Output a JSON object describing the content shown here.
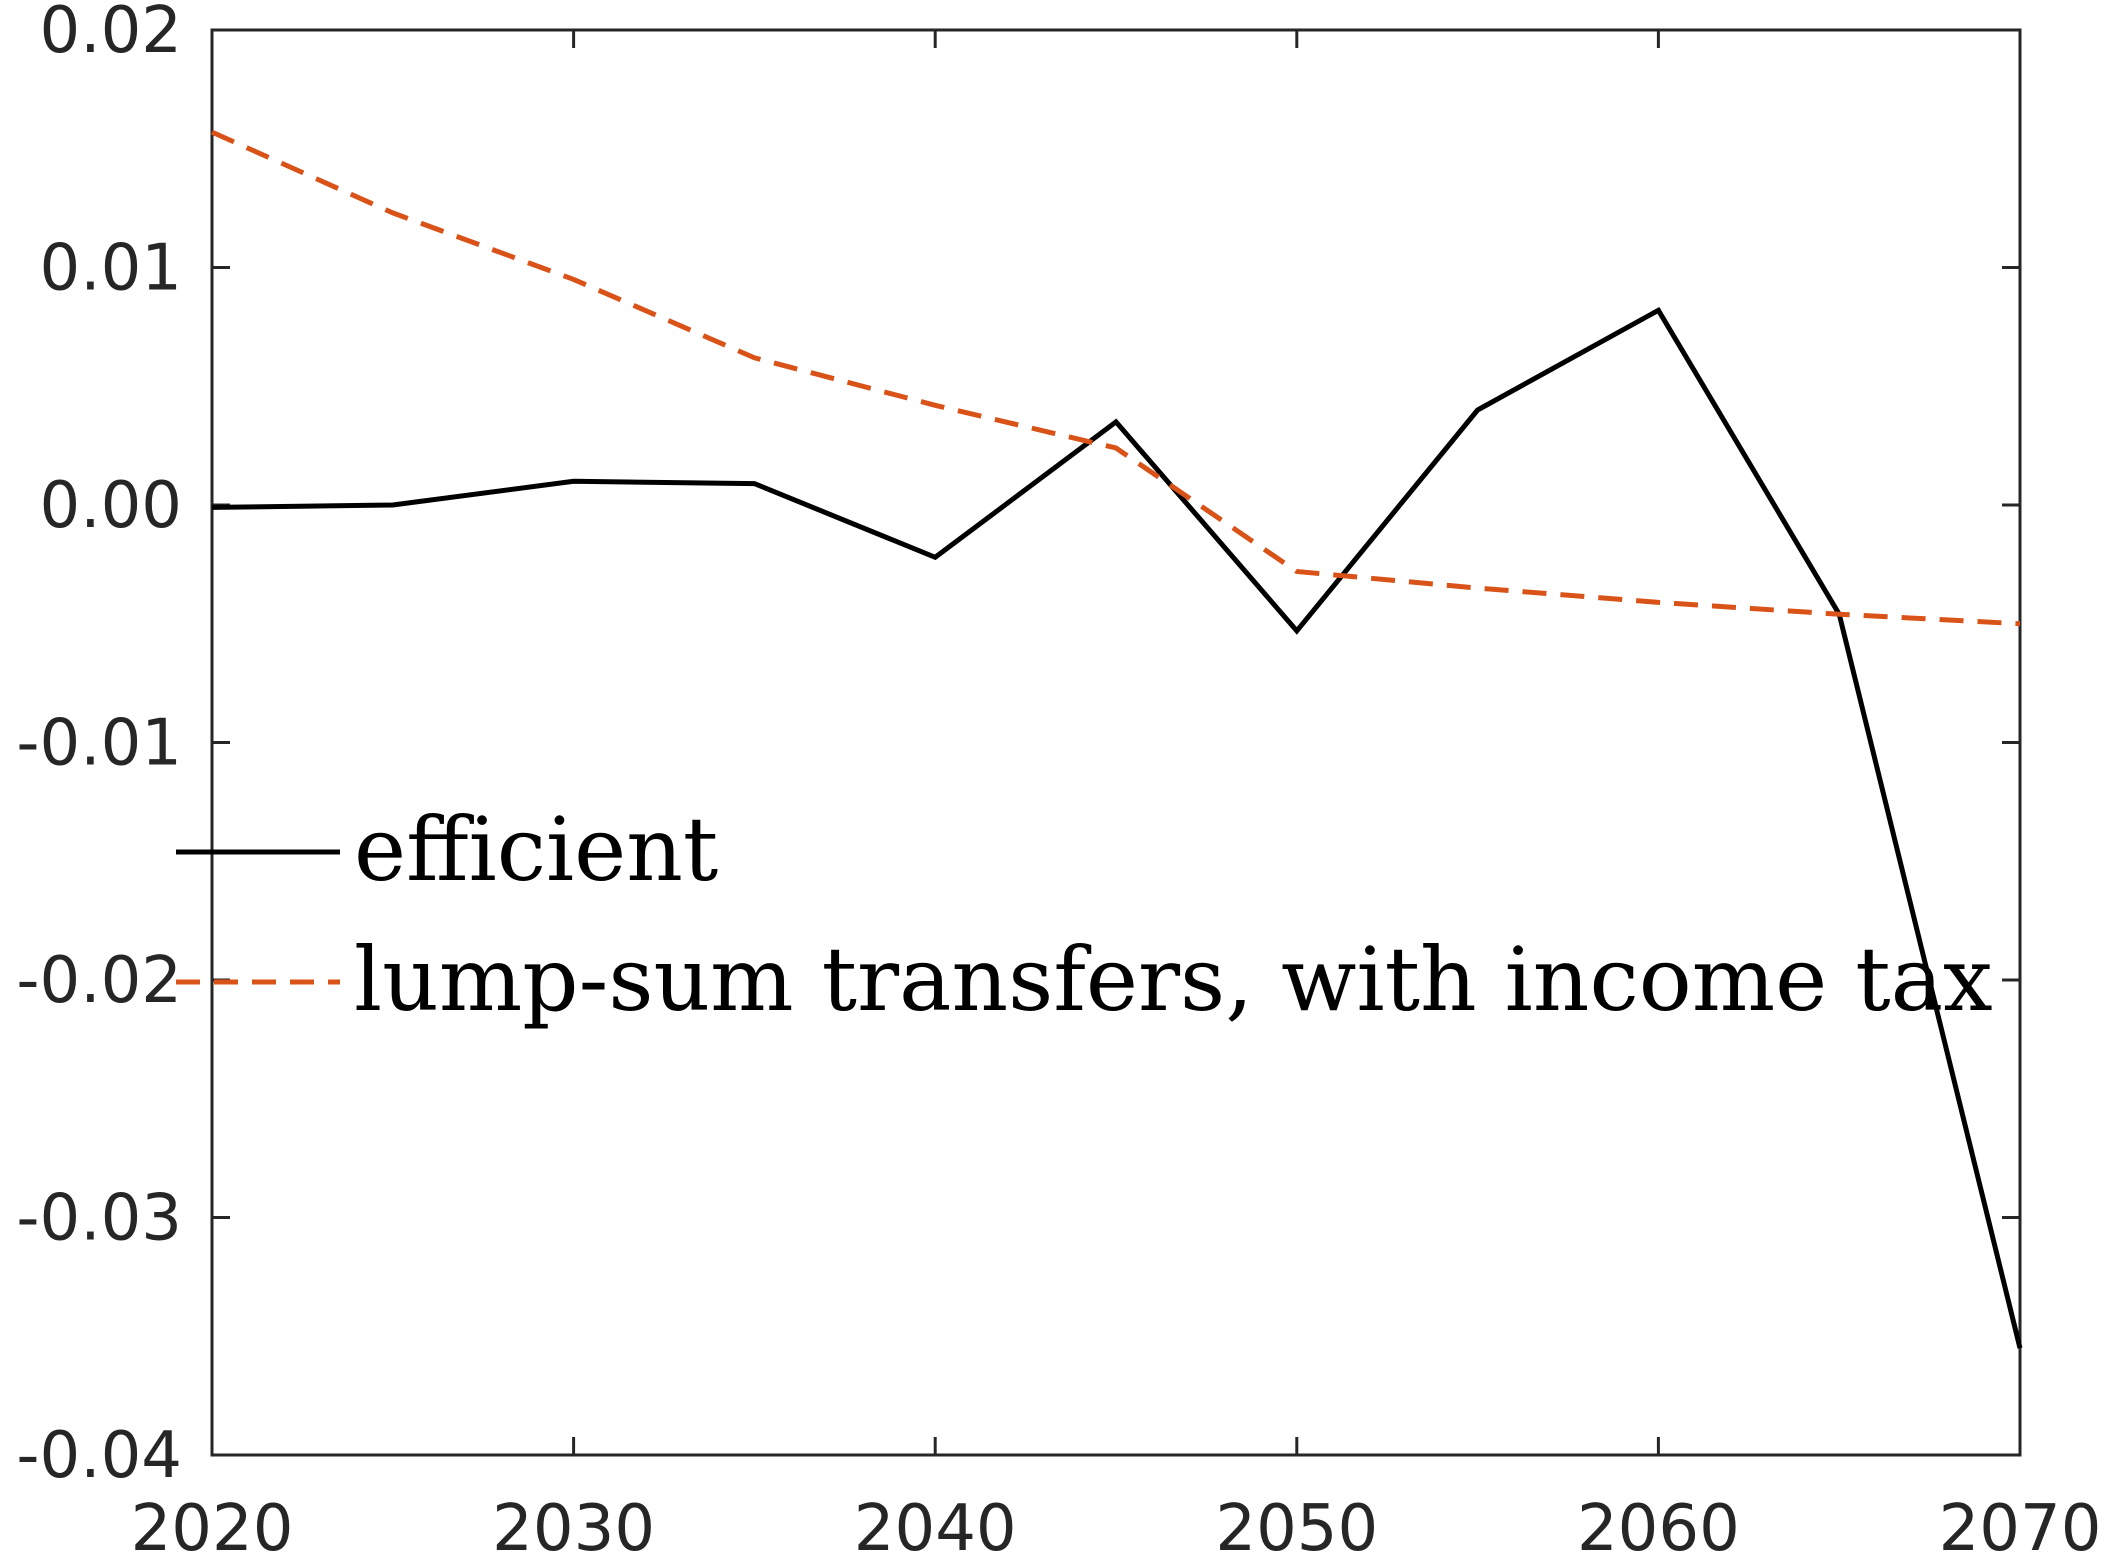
{
  "chart_data": {
    "type": "line",
    "x": [
      2020,
      2025,
      2030,
      2035,
      2040,
      2045,
      2050,
      2055,
      2060,
      2065,
      2070
    ],
    "series": [
      {
        "name": "efficient",
        "color": "#000000",
        "style": "solid",
        "values": [
          -0.0001,
          0.0,
          0.001,
          0.0009,
          -0.0022,
          0.0035,
          -0.0053,
          0.004,
          0.0082,
          -0.0046,
          -0.0355
        ]
      },
      {
        "name": "lump-sum transfers, with income tax",
        "color": "#D95319",
        "style": "dashed",
        "values": [
          0.0157,
          0.0123,
          0.0095,
          0.0062,
          0.0042,
          0.0024,
          -0.0028,
          -0.0035,
          -0.0041,
          -0.0046,
          -0.005
        ]
      }
    ],
    "xlim": [
      2020,
      2070
    ],
    "ylim": [
      -0.04,
      0.02
    ],
    "xticks": [
      2020,
      2030,
      2040,
      2050,
      2060,
      2070
    ],
    "xtick_labels": [
      "2020",
      "2030",
      "2040",
      "2050",
      "2060",
      "2070"
    ],
    "yticks": [
      0.02,
      0.01,
      0.0,
      -0.01,
      -0.02,
      -0.03,
      -0.04
    ],
    "ytick_labels": [
      "0.02",
      "0.01",
      "0.00",
      "-0.01",
      "-0.02",
      "-0.03",
      "-0.04"
    ],
    "grid": false,
    "legend_position": "left-center",
    "title": "",
    "xlabel": "",
    "ylabel": ""
  }
}
